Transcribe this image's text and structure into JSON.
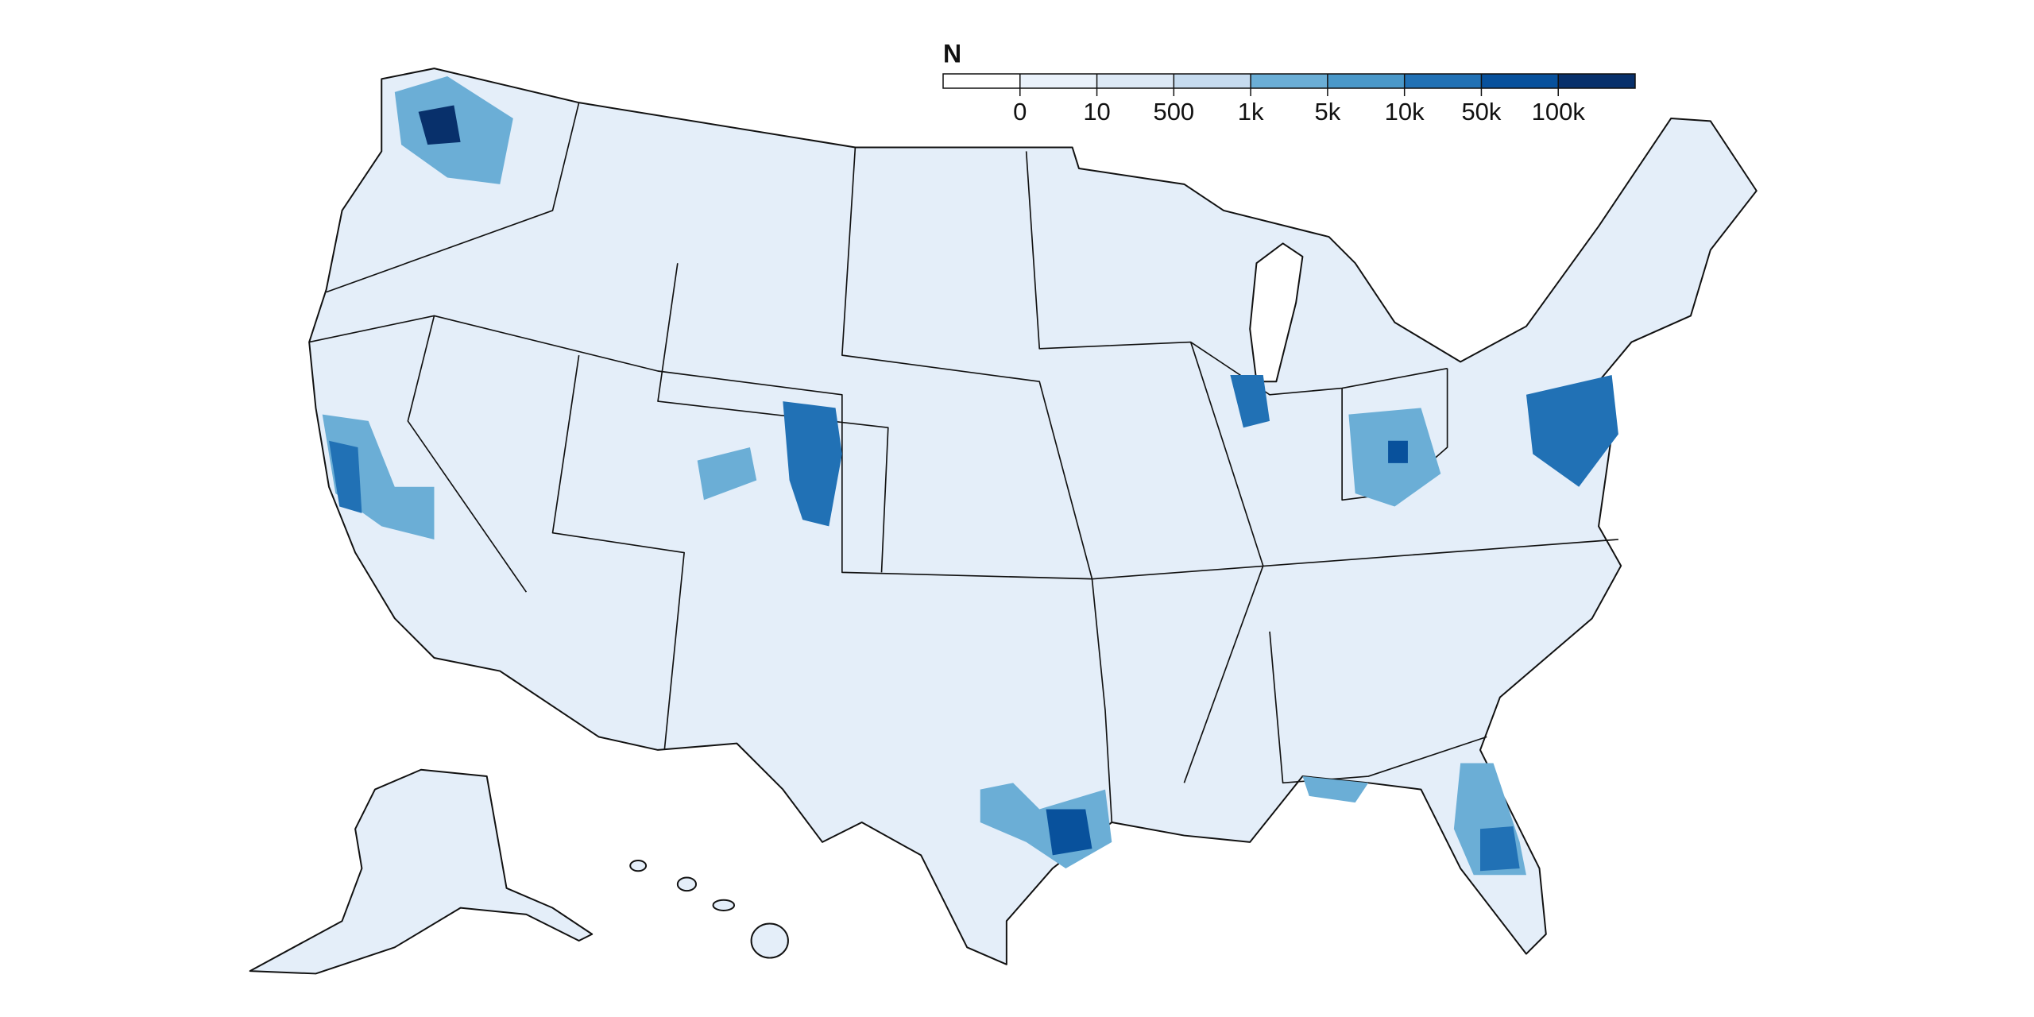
{
  "legend": {
    "title": "N",
    "ticks": [
      0,
      10,
      500,
      {
        "value": 1000,
        "label": "1k"
      },
      {
        "value": 5000,
        "label": "5k"
      },
      {
        "value": 10000,
        "label": "10k"
      },
      {
        "value": 50000,
        "label": "50k"
      },
      {
        "value": 100000,
        "label": "100k"
      }
    ],
    "colors": [
      "#ffffff",
      "#eaf2fb",
      "#dde9f6",
      "#c6dbef",
      "#6baed6",
      "#4a98c9",
      "#2171b5",
      "#08519c",
      "#08306b"
    ]
  }
}
